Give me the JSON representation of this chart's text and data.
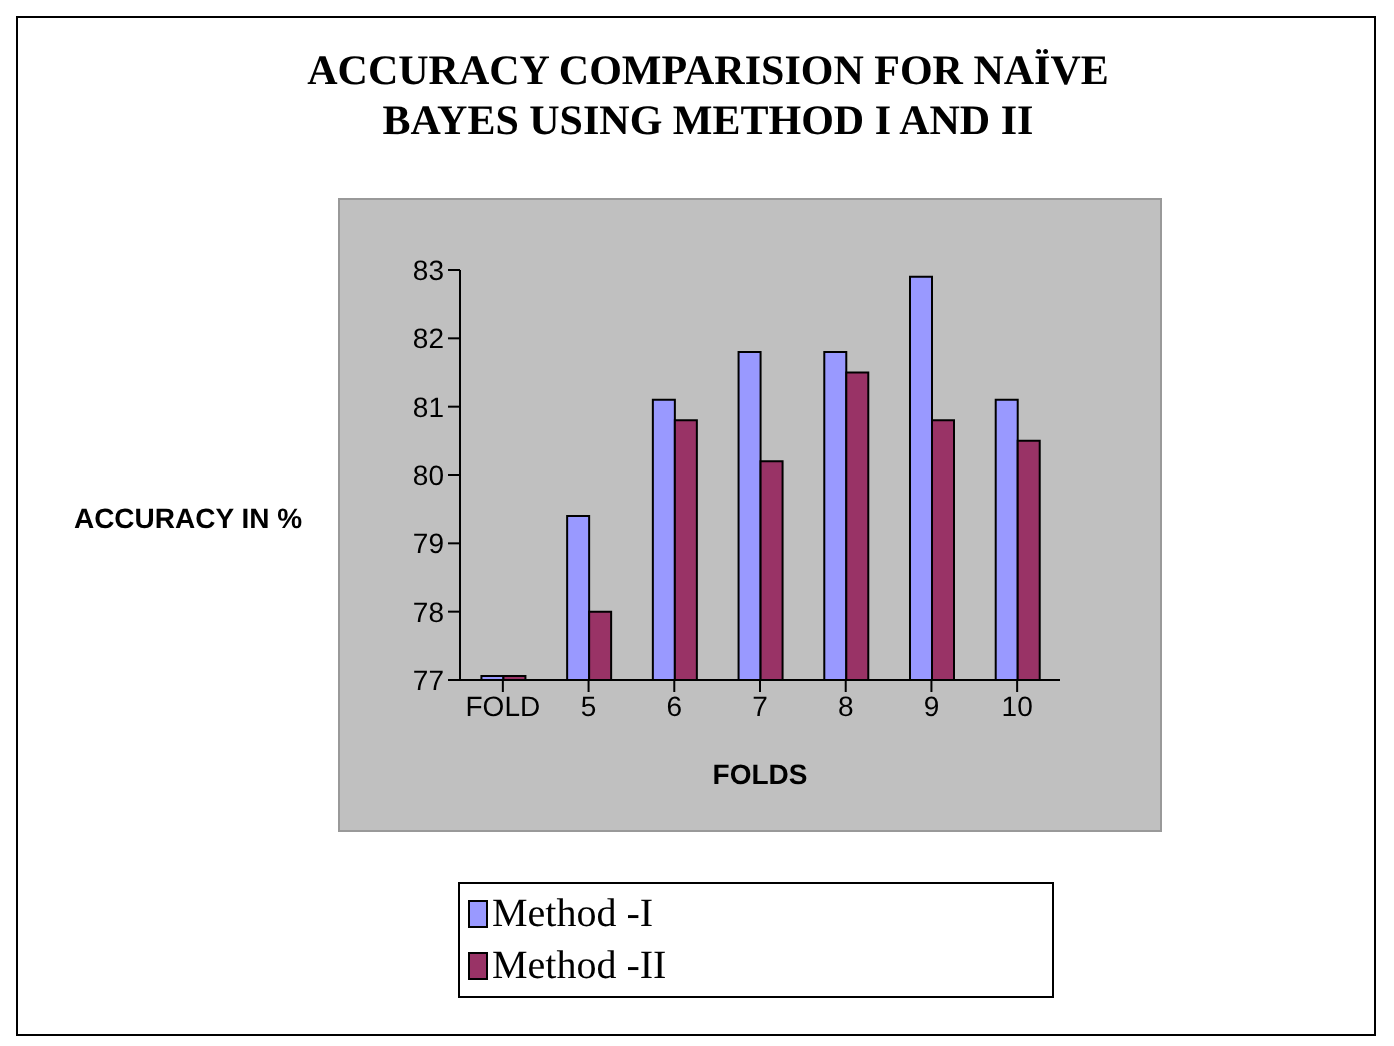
{
  "chart_data": {
    "type": "bar",
    "title": "ACCURACY COMPARISION FOR NAÏVE BAYES USING METHOD I AND II",
    "xlabel": "FOLDS",
    "ylabel": "ACCURACY IN %",
    "categories": [
      "FOLD",
      "5",
      "6",
      "7",
      "8",
      "9",
      "10"
    ],
    "series": [
      {
        "name": "Method -I",
        "color": "#9999ff",
        "values": [
          77,
          79.4,
          81.1,
          81.8,
          81.8,
          82.9,
          81.1
        ]
      },
      {
        "name": "Method -II",
        "color": "#993366",
        "values": [
          77,
          78,
          80.8,
          80.2,
          81.5,
          80.8,
          80.5
        ]
      }
    ],
    "ylim": [
      77,
      83
    ],
    "yticks": [
      77,
      78,
      79,
      80,
      81,
      82,
      83
    ],
    "grid": false,
    "legend": "bottom"
  }
}
